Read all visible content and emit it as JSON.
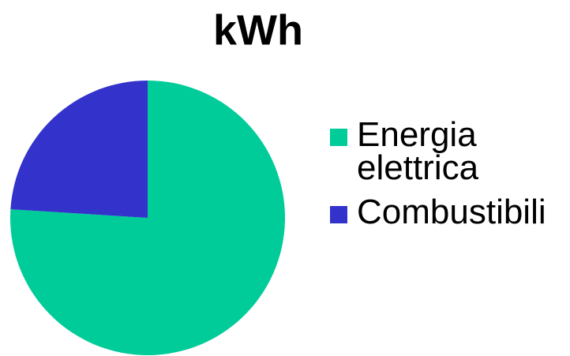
{
  "chart_data": {
    "type": "pie",
    "title": "kWh",
    "categories": [
      "Energia elettrica",
      "Combustibili"
    ],
    "values": [
      76,
      24
    ],
    "colors": [
      "#00cc99",
      "#3333cc"
    ]
  }
}
